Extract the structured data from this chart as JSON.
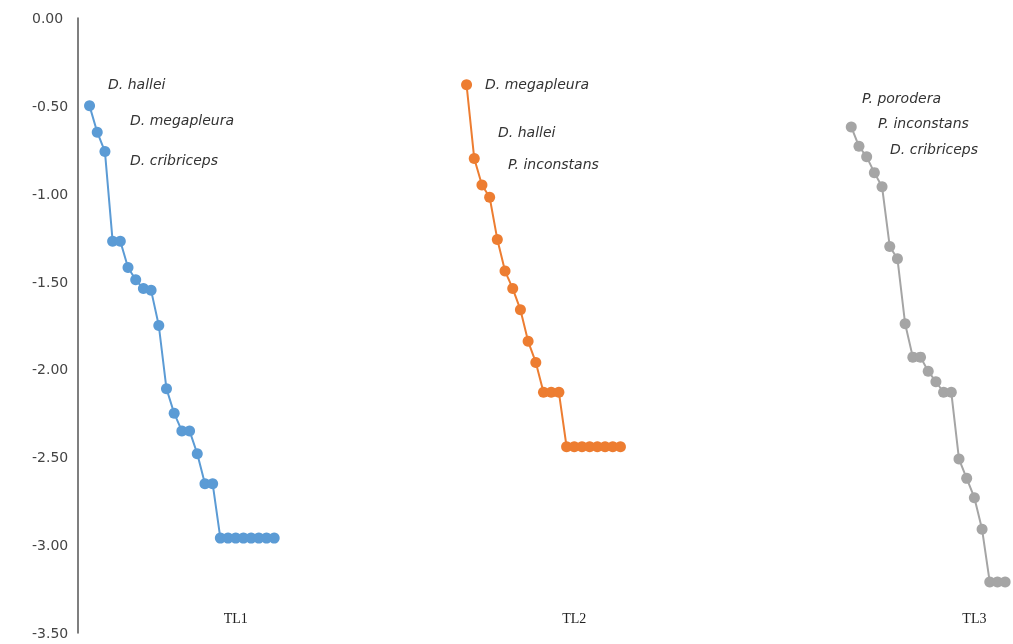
{
  "chart_data": {
    "type": "line",
    "categories": [
      null,
      null,
      null,
      null,
      null,
      null,
      null,
      null,
      null,
      null,
      null,
      null,
      null,
      null,
      null,
      null,
      null,
      null,
      null,
      null,
      "TL1",
      null,
      null,
      null,
      null,
      null,
      null,
      null,
      null,
      null,
      null,
      null,
      null,
      null,
      null,
      null,
      null,
      null,
      null,
      null,
      null,
      null,
      null,
      null,
      null,
      null,
      null,
      null,
      null,
      null,
      null,
      null,
      null,
      null,
      null,
      null,
      null,
      null,
      null,
      null,
      null,
      null,
      null,
      null,
      "TL2",
      null,
      null,
      null,
      null,
      null,
      null,
      null,
      null,
      null,
      null,
      null,
      null,
      null,
      null,
      null,
      null,
      null,
      null,
      null,
      null,
      null,
      null,
      null,
      null,
      null,
      null,
      null,
      null,
      null,
      null,
      null,
      null,
      null,
      null,
      null,
      null,
      null,
      null,
      null,
      null,
      null,
      null,
      null,
      null,
      null,
      null,
      null,
      null,
      null,
      null,
      null,
      "TL3",
      null,
      null,
      null,
      null
    ],
    "series": [
      {
        "color": "#5b9bd5",
        "values": [
          null,
          -0.5,
          -0.65,
          -0.76,
          -1.27,
          -1.27,
          -1.42,
          -1.49,
          -1.54,
          -1.55,
          -1.75,
          -2.11,
          -2.25,
          -2.35,
          -2.35,
          -2.48,
          -2.65,
          -2.65,
          -2.96,
          -2.96,
          -2.96,
          -2.96,
          -2.96,
          -2.96,
          -2.96,
          -2.96,
          null,
          null,
          null,
          null,
          null,
          null,
          null,
          null,
          null,
          null,
          null,
          null,
          null,
          null,
          null,
          null,
          null,
          null,
          null,
          null,
          null,
          null,
          null,
          null,
          null,
          null,
          null,
          null,
          null,
          null,
          null,
          null,
          null,
          null,
          null,
          null,
          null,
          null,
          null,
          null,
          null,
          null,
          null,
          null,
          null,
          null,
          null,
          null,
          null,
          null,
          null,
          null,
          null,
          null,
          null,
          null,
          null,
          null,
          null,
          null,
          null,
          null,
          null,
          null,
          null,
          null,
          null,
          null,
          null,
          null,
          null,
          null,
          null,
          null,
          null,
          null,
          null,
          null,
          null,
          null,
          null,
          null,
          null,
          null,
          null,
          null,
          null,
          null,
          null,
          null,
          null,
          null,
          null,
          null,
          null
        ]
      },
      {
        "color": "#ed7d31",
        "values": [
          null,
          null,
          null,
          null,
          null,
          null,
          null,
          null,
          null,
          null,
          null,
          null,
          null,
          null,
          null,
          null,
          null,
          null,
          null,
          null,
          null,
          null,
          null,
          null,
          null,
          null,
          null,
          null,
          null,
          null,
          null,
          null,
          null,
          null,
          null,
          null,
          null,
          null,
          null,
          null,
          null,
          null,
          null,
          null,
          null,
          null,
          null,
          null,
          null,
          null,
          -0.38,
          -0.8,
          -0.95,
          -1.02,
          -1.26,
          -1.44,
          -1.54,
          -1.66,
          -1.84,
          -1.96,
          -2.13,
          -2.13,
          -2.13,
          -2.44,
          -2.44,
          -2.44,
          -2.44,
          -2.44,
          -2.44,
          -2.44,
          -2.44,
          null,
          null,
          null,
          null,
          null,
          null,
          null,
          null,
          null,
          null,
          null,
          null,
          null,
          null,
          null,
          null,
          null,
          null,
          null,
          null,
          null,
          null,
          null,
          null,
          null,
          null,
          null,
          null,
          null,
          null,
          null,
          null,
          null,
          null,
          null,
          null,
          null,
          null,
          null,
          null,
          null,
          null,
          null,
          null,
          null,
          null,
          null,
          null,
          null,
          null
        ]
      },
      {
        "color": "#a5a5a5",
        "values": [
          null,
          null,
          null,
          null,
          null,
          null,
          null,
          null,
          null,
          null,
          null,
          null,
          null,
          null,
          null,
          null,
          null,
          null,
          null,
          null,
          null,
          null,
          null,
          null,
          null,
          null,
          null,
          null,
          null,
          null,
          null,
          null,
          null,
          null,
          null,
          null,
          null,
          null,
          null,
          null,
          null,
          null,
          null,
          null,
          null,
          null,
          null,
          null,
          null,
          null,
          null,
          null,
          null,
          null,
          null,
          null,
          null,
          null,
          null,
          null,
          null,
          null,
          null,
          null,
          null,
          null,
          null,
          null,
          null,
          null,
          null,
          null,
          null,
          null,
          null,
          null,
          null,
          null,
          null,
          null,
          null,
          null,
          null,
          null,
          null,
          null,
          null,
          null,
          null,
          null,
          null,
          null,
          null,
          null,
          null,
          null,
          null,
          null,
          null,
          null,
          -0.62,
          -0.73,
          -0.79,
          -0.88,
          -0.96,
          -1.3,
          -1.37,
          -1.74,
          -1.93,
          -1.93,
          -2.01,
          -2.07,
          -2.13,
          -2.13,
          -2.51,
          -2.62,
          -2.73,
          -2.91,
          -3.21,
          -3.21,
          -3.21
        ]
      }
    ],
    "ylim": [
      -3.5,
      0
    ],
    "yticks": [
      {
        "value": 0,
        "label": "0.00"
      },
      {
        "value": -0.5,
        "label": "-0.50"
      },
      {
        "value": -1,
        "label": "-1.00"
      },
      {
        "value": -1.5,
        "label": "-1.50"
      },
      {
        "value": -2,
        "label": "-2.00"
      },
      {
        "value": -2.5,
        "label": "-2.50"
      },
      {
        "value": -3,
        "label": "-3.00"
      },
      {
        "value": -3.5,
        "label": "-3.50"
      }
    ],
    "annotations": [
      "D. hallei",
      "D. megapleura",
      "D. cribriceps",
      "D. megapleura",
      "D. hallei",
      "P. inconstans",
      "P. porodera",
      "P. inconstans",
      "D. cribriceps"
    ],
    "marker": "circle",
    "line_style": "solid",
    "grid": false
  }
}
